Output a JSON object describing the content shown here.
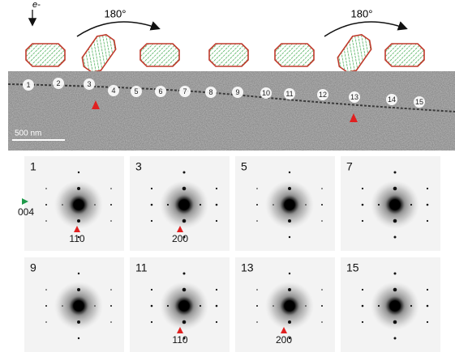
{
  "top": {
    "electron_label": "e-",
    "rotations": [
      "180°",
      "180°"
    ]
  },
  "micrograph": {
    "positions": [
      "1",
      "2",
      "3",
      "4",
      "5",
      "6",
      "7",
      "8",
      "9",
      "10",
      "11",
      "12",
      "13",
      "14",
      "15"
    ],
    "scale_bar": "500 nm"
  },
  "patterns": [
    {
      "label": "1",
      "annotations": [
        "004",
        "110"
      ]
    },
    {
      "label": "3",
      "annotations": [
        "200"
      ]
    },
    {
      "label": "5",
      "annotations": []
    },
    {
      "label": "7",
      "annotations": []
    },
    {
      "label": "9",
      "annotations": []
    },
    {
      "label": "11",
      "annotations": [
        "110"
      ]
    },
    {
      "label": "13",
      "annotations": [
        "200"
      ]
    },
    {
      "label": "15",
      "annotations": []
    }
  ]
}
